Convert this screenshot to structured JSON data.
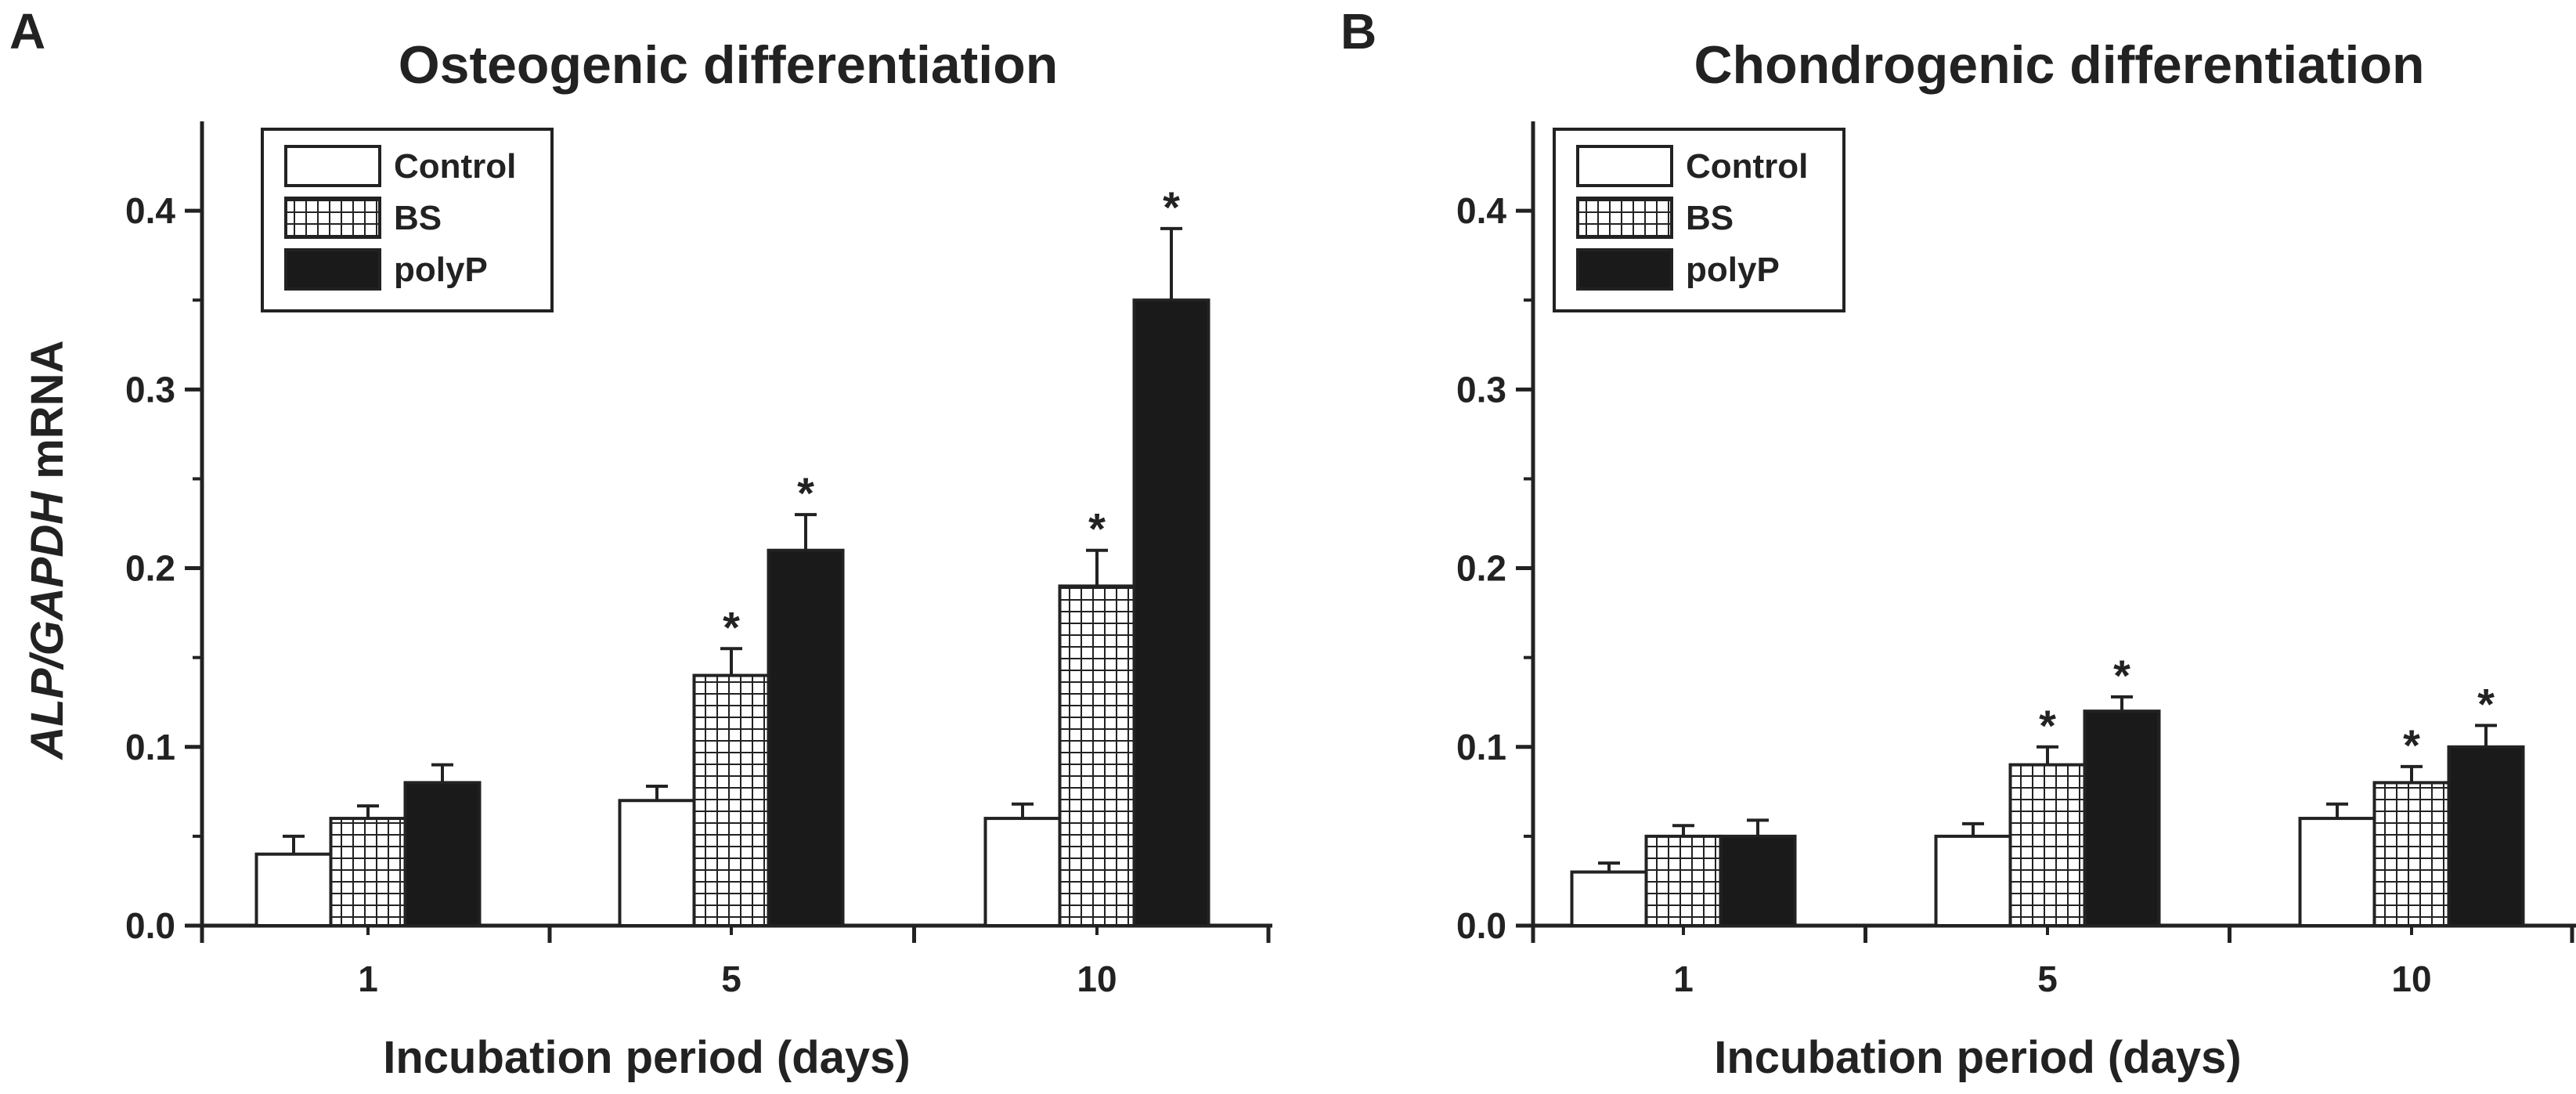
{
  "figure": {
    "y_axis_label_italic": "ALP/GAPDH",
    "y_axis_label_rest": " mRNA"
  },
  "chart_data": [
    {
      "type": "bar",
      "panel": "A",
      "title": "Osteogenic differentiation",
      "xlabel": "Incubation period (days)",
      "ylabel": "ALP/GAPDH mRNA",
      "categories": [
        "1",
        "5",
        "10"
      ],
      "ylim": [
        0,
        0.45
      ],
      "yticks": [
        "0.0",
        "0.1",
        "0.2",
        "0.3",
        "0.4"
      ],
      "ytick_values": [
        0,
        0.1,
        0.2,
        0.3,
        0.4
      ],
      "legend_position": "top-left",
      "series": [
        {
          "name": "Control",
          "values": [
            0.04,
            0.07,
            0.06
          ],
          "errors": [
            0.01,
            0.008,
            0.008
          ],
          "significant": [
            false,
            false,
            false
          ],
          "fill": "white"
        },
        {
          "name": "BS",
          "values": [
            0.06,
            0.14,
            0.19
          ],
          "errors": [
            0.007,
            0.015,
            0.02
          ],
          "significant": [
            false,
            true,
            true
          ],
          "fill": "grid"
        },
        {
          "name": "polyP",
          "values": [
            0.08,
            0.21,
            0.35
          ],
          "errors": [
            0.01,
            0.02,
            0.04
          ],
          "significant": [
            false,
            true,
            true
          ],
          "fill": "black"
        }
      ],
      "significance_marker": "*"
    },
    {
      "type": "bar",
      "panel": "B",
      "title": "Chondrogenic differentiation",
      "xlabel": "Incubation period (days)",
      "ylabel": "",
      "categories": [
        "1",
        "5",
        "10"
      ],
      "ylim": [
        0,
        0.45
      ],
      "yticks": [
        "0.0",
        "0.1",
        "0.2",
        "0.3",
        "0.4"
      ],
      "ytick_values": [
        0,
        0.1,
        0.2,
        0.3,
        0.4
      ],
      "legend_position": "top-left",
      "series": [
        {
          "name": "Control",
          "values": [
            0.03,
            0.05,
            0.06
          ],
          "errors": [
            0.005,
            0.007,
            0.008
          ],
          "significant": [
            false,
            false,
            false
          ],
          "fill": "white"
        },
        {
          "name": "BS",
          "values": [
            0.05,
            0.09,
            0.08
          ],
          "errors": [
            0.006,
            0.01,
            0.009
          ],
          "significant": [
            false,
            true,
            true
          ],
          "fill": "grid"
        },
        {
          "name": "polyP",
          "values": [
            0.05,
            0.12,
            0.1
          ],
          "errors": [
            0.009,
            0.008,
            0.012
          ],
          "significant": [
            false,
            true,
            true
          ],
          "fill": "black"
        }
      ],
      "significance_marker": "*"
    }
  ]
}
